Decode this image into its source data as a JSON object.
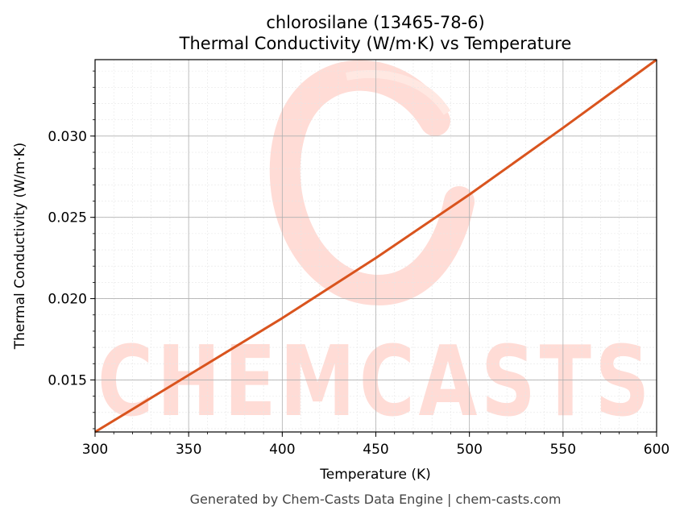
{
  "chart_data": {
    "type": "line",
    "title": "chlorosilane (13465-78-6)",
    "subtitle": "Thermal Conductivity (W/m·K) vs Temperature",
    "xlabel": "Temperature (K)",
    "ylabel": "Thermal Conductivity (W/m·K)",
    "xlim": [
      300,
      600
    ],
    "ylim": [
      0.0118,
      0.0347
    ],
    "xticks": [
      300,
      350,
      400,
      450,
      500,
      550,
      600
    ],
    "xtick_labels": [
      "300",
      "350",
      "400",
      "450",
      "500",
      "550",
      "600"
    ],
    "yticks": [
      0.015,
      0.02,
      0.025,
      0.03
    ],
    "ytick_labels": [
      "0.015",
      "0.020",
      "0.025",
      "0.030"
    ],
    "grid": true,
    "series": [
      {
        "color": "#d9541e",
        "x": [
          300,
          350,
          400,
          450,
          500,
          550,
          600
        ],
        "y": [
          0.0118,
          0.0153,
          0.0188,
          0.0225,
          0.0264,
          0.0305,
          0.0347
        ]
      }
    ]
  },
  "watermark": {
    "text": "CHEMCASTS",
    "color": "#ffd6cf"
  },
  "footer": "Generated by Chem-Casts Data Engine | chem-casts.com"
}
